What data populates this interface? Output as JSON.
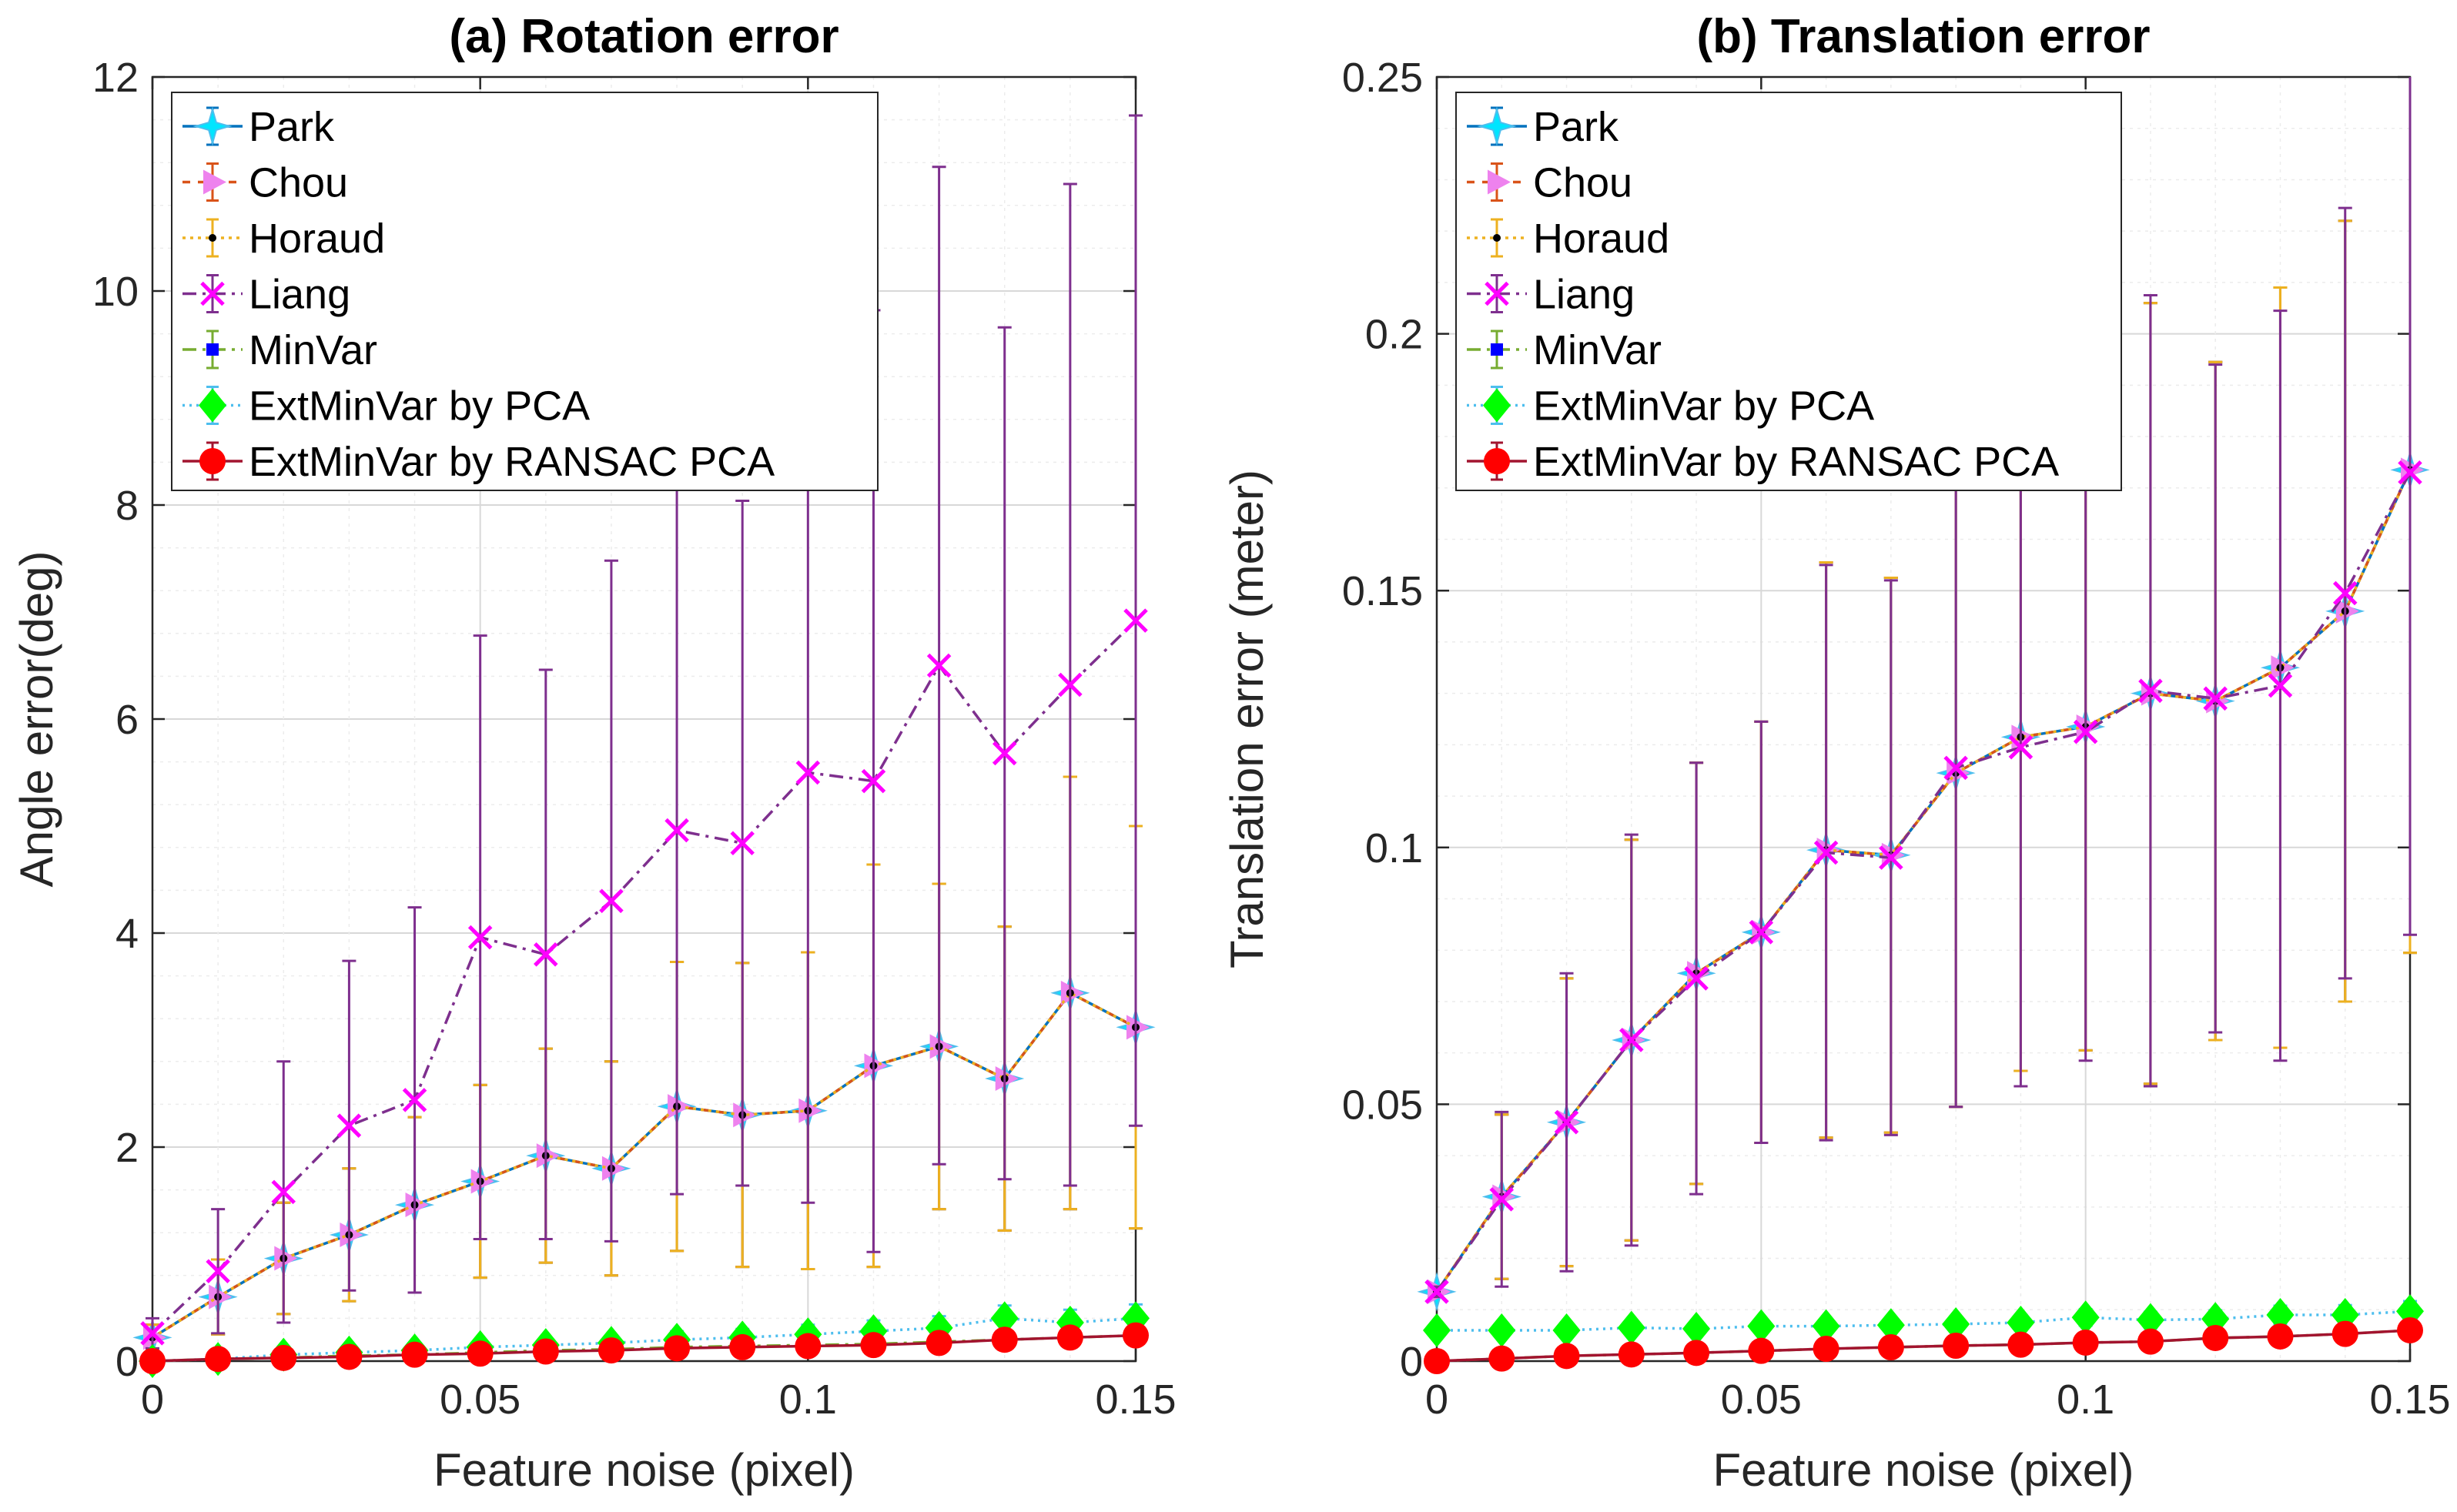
{
  "chart_data": [
    {
      "type": "line",
      "title": "(a) Rotation error",
      "xlabel": "Feature noise (pixel)",
      "ylabel": "Angle error(deg)",
      "xlim": [
        0,
        0.15
      ],
      "ylim": [
        0,
        12
      ],
      "xticks": [
        "0",
        "0.05",
        "0.1",
        "0.15"
      ],
      "yticks": [
        "0",
        "2",
        "4",
        "6",
        "8",
        "10",
        "12"
      ],
      "grid": true,
      "legend_position": "top-left",
      "x": [
        0,
        0.01,
        0.02,
        0.03,
        0.04,
        0.05,
        0.06,
        0.07,
        0.08,
        0.09,
        0.1,
        0.11,
        0.12,
        0.13,
        0.14,
        0.15
      ],
      "series": [
        {
          "name": "Park",
          "color": "#0072bd",
          "marker_color": "#00e5ff",
          "dash": "solid",
          "values": [
            0.22,
            0.6,
            0.96,
            1.18,
            1.46,
            1.68,
            1.92,
            1.8,
            2.38,
            2.3,
            2.34,
            2.76,
            2.94,
            2.64,
            3.44,
            3.12
          ],
          "err": [
            0.12,
            0.35,
            0.52,
            0.62,
            0.82,
            0.9,
            1.0,
            1.0,
            1.35,
            1.42,
            1.48,
            1.88,
            1.52,
            1.42,
            2.02,
            1.88
          ]
        },
        {
          "name": "Chou",
          "color": "#d95319",
          "marker_color": "#ee82ee",
          "dash": "10,10",
          "values": [
            0.22,
            0.6,
            0.96,
            1.18,
            1.46,
            1.68,
            1.92,
            1.8,
            2.38,
            2.3,
            2.34,
            2.76,
            2.94,
            2.64,
            3.44,
            3.12
          ],
          "err": [
            0.12,
            0.35,
            0.52,
            0.62,
            0.82,
            0.9,
            1.0,
            1.0,
            1.35,
            1.42,
            1.48,
            1.88,
            1.52,
            1.42,
            2.02,
            1.88
          ]
        },
        {
          "name": "Horaud",
          "color": "#edb120",
          "marker_color": "#000000",
          "dash": "4,6",
          "values": [
            0.22,
            0.6,
            0.96,
            1.18,
            1.46,
            1.68,
            1.92,
            1.8,
            2.38,
            2.3,
            2.34,
            2.76,
            2.94,
            2.64,
            3.44,
            3.12
          ],
          "err": [
            0.12,
            0.35,
            0.52,
            0.62,
            0.82,
            0.9,
            1.0,
            1.0,
            1.35,
            1.42,
            1.48,
            1.88,
            1.52,
            1.42,
            2.02,
            1.88
          ]
        },
        {
          "name": "Liang",
          "color": "#7e2f8e",
          "marker_color": "#ff00ff",
          "dash": "18,8,4,8",
          "values": [
            0.26,
            0.84,
            1.58,
            2.2,
            2.44,
            3.96,
            3.8,
            4.3,
            4.96,
            4.84,
            5.5,
            5.42,
            6.5,
            5.68,
            6.32,
            6.92
          ],
          "err": [
            0.14,
            0.58,
            1.22,
            1.54,
            1.8,
            2.82,
            2.66,
            3.18,
            3.4,
            3.2,
            4.02,
            4.4,
            4.66,
            3.98,
            4.68,
            4.72
          ]
        },
        {
          "name": "MinVar",
          "color": "#77ac30",
          "marker_color": "#0000ff",
          "dash": "18,8,4,8",
          "values": [
            0.0,
            0.02,
            0.03,
            0.05,
            0.06,
            0.08,
            0.1,
            0.11,
            0.13,
            0.14,
            0.15,
            0.16,
            0.18,
            0.2,
            0.22,
            0.24
          ],
          "err": [
            0.01,
            0.02,
            0.02,
            0.03,
            0.03,
            0.04,
            0.04,
            0.05,
            0.05,
            0.06,
            0.06,
            0.07,
            0.07,
            0.08,
            0.08,
            0.09
          ]
        },
        {
          "name": "ExtMinVar by PCA",
          "color": "#4dbeee",
          "marker_color": "#00ff00",
          "dash": "3,6",
          "values": [
            0.0,
            0.02,
            0.06,
            0.08,
            0.1,
            0.13,
            0.15,
            0.17,
            0.2,
            0.22,
            0.25,
            0.28,
            0.31,
            0.4,
            0.36,
            0.4
          ],
          "err": [
            0.01,
            0.02,
            0.03,
            0.04,
            0.05,
            0.05,
            0.06,
            0.07,
            0.08,
            0.08,
            0.09,
            0.1,
            0.11,
            0.12,
            0.12,
            0.13
          ]
        },
        {
          "name": "ExtMinVar by RANSAC PCA",
          "color": "#a2142f",
          "marker_color": "#ff0000",
          "dash": "solid",
          "values": [
            0.0,
            0.02,
            0.03,
            0.04,
            0.06,
            0.07,
            0.09,
            0.1,
            0.12,
            0.13,
            0.14,
            0.15,
            0.17,
            0.2,
            0.22,
            0.24
          ],
          "err": [
            0.01,
            0.02,
            0.02,
            0.03,
            0.03,
            0.04,
            0.04,
            0.05,
            0.05,
            0.06,
            0.06,
            0.07,
            0.07,
            0.08,
            0.08,
            0.09
          ]
        }
      ]
    },
    {
      "type": "line",
      "title": "(b) Translation error",
      "xlabel": "Feature noise (pixel)",
      "ylabel": "Translation error (meter)",
      "xlim": [
        0,
        0.15
      ],
      "ylim": [
        0,
        0.25
      ],
      "xticks": [
        "0",
        "0.05",
        "0.1",
        "0.15"
      ],
      "yticks": [
        "0",
        "0.05",
        "0.1",
        "0.15",
        "0.2",
        "0.25"
      ],
      "grid": true,
      "legend_position": "top-left",
      "x": [
        0,
        0.01,
        0.02,
        0.03,
        0.04,
        0.05,
        0.06,
        0.07,
        0.08,
        0.09,
        0.1,
        0.11,
        0.12,
        0.13,
        0.14,
        0.15
      ],
      "series": [
        {
          "name": "Park",
          "color": "#0072bd",
          "marker_color": "#00e5ff",
          "dash": "solid",
          "values": [
            0.0135,
            0.032,
            0.0465,
            0.0625,
            0.0755,
            0.0835,
            0.0995,
            0.0985,
            0.1145,
            0.1215,
            0.1235,
            0.13,
            0.1285,
            0.135,
            0.146,
            0.1735
          ],
          "err": [
            0.001,
            0.016,
            0.028,
            0.039,
            0.041,
            0.041,
            0.056,
            0.054,
            0.065,
            0.065,
            0.063,
            0.076,
            0.066,
            0.074,
            0.076,
            0.094
          ]
        },
        {
          "name": "Chou",
          "color": "#d95319",
          "marker_color": "#ee82ee",
          "dash": "10,10",
          "values": [
            0.0135,
            0.032,
            0.0465,
            0.0625,
            0.0755,
            0.0835,
            0.0995,
            0.0985,
            0.1145,
            0.1215,
            0.1235,
            0.13,
            0.1285,
            0.135,
            0.146,
            0.1735
          ],
          "err": [
            0.001,
            0.016,
            0.028,
            0.039,
            0.041,
            0.041,
            0.056,
            0.054,
            0.065,
            0.065,
            0.063,
            0.076,
            0.066,
            0.074,
            0.076,
            0.094
          ]
        },
        {
          "name": "Horaud",
          "color": "#edb120",
          "marker_color": "#000000",
          "dash": "4,6",
          "values": [
            0.0135,
            0.032,
            0.0465,
            0.0625,
            0.0755,
            0.0835,
            0.0995,
            0.0985,
            0.1145,
            0.1215,
            0.1235,
            0.13,
            0.1285,
            0.135,
            0.146,
            0.1735
          ],
          "err": [
            0.001,
            0.016,
            0.028,
            0.039,
            0.041,
            0.041,
            0.056,
            0.054,
            0.065,
            0.065,
            0.063,
            0.076,
            0.066,
            0.074,
            0.076,
            0.094
          ]
        },
        {
          "name": "Liang",
          "color": "#7e2f8e",
          "marker_color": "#ff00ff",
          "dash": "18,8,4,8",
          "values": [
            0.0135,
            0.0315,
            0.0465,
            0.0625,
            0.0745,
            0.0835,
            0.099,
            0.098,
            0.1155,
            0.1195,
            0.1225,
            0.1305,
            0.129,
            0.1315,
            0.1495,
            0.173
          ],
          "err": [
            0.001,
            0.017,
            0.029,
            0.04,
            0.042,
            0.041,
            0.056,
            0.054,
            0.066,
            0.066,
            0.064,
            0.077,
            0.065,
            0.073,
            0.075,
            0.09
          ]
        },
        {
          "name": "MinVar",
          "color": "#77ac30",
          "marker_color": "#0000ff",
          "dash": "18,8,4,8",
          "values": [
            0.0,
            0.0005,
            0.001,
            0.0013,
            0.0016,
            0.002,
            0.0024,
            0.0027,
            0.003,
            0.0032,
            0.0036,
            0.0038,
            0.0045,
            0.0048,
            0.0053,
            0.006
          ],
          "err": [
            0.0003,
            0.0005,
            0.0006,
            0.0007,
            0.0008,
            0.0009,
            0.001,
            0.0011,
            0.0012,
            0.0013,
            0.0014,
            0.0015,
            0.0016,
            0.0017,
            0.0018,
            0.0019
          ]
        },
        {
          "name": "ExtMinVar by PCA",
          "color": "#4dbeee",
          "marker_color": "#00ff00",
          "dash": "3,6",
          "values": [
            0.006,
            0.006,
            0.006,
            0.0065,
            0.0063,
            0.0068,
            0.0068,
            0.007,
            0.0072,
            0.0075,
            0.0085,
            0.008,
            0.0082,
            0.009,
            0.009,
            0.0097
          ],
          "err": [
            0.0008,
            0.0009,
            0.001,
            0.001,
            0.0011,
            0.0012,
            0.0012,
            0.0013,
            0.0014,
            0.0015,
            0.0016,
            0.0016,
            0.0017,
            0.0018,
            0.0019,
            0.002
          ]
        },
        {
          "name": "ExtMinVar by RANSAC PCA",
          "color": "#a2142f",
          "marker_color": "#ff0000",
          "dash": "solid",
          "values": [
            0.0,
            0.0005,
            0.001,
            0.0013,
            0.0016,
            0.002,
            0.0024,
            0.0027,
            0.003,
            0.0032,
            0.0036,
            0.0038,
            0.0045,
            0.0048,
            0.0053,
            0.006
          ],
          "err": [
            0.0003,
            0.0005,
            0.0006,
            0.0007,
            0.0008,
            0.0009,
            0.001,
            0.0011,
            0.0012,
            0.0013,
            0.0014,
            0.0015,
            0.0016,
            0.0017,
            0.0018,
            0.0019
          ]
        }
      ]
    }
  ]
}
